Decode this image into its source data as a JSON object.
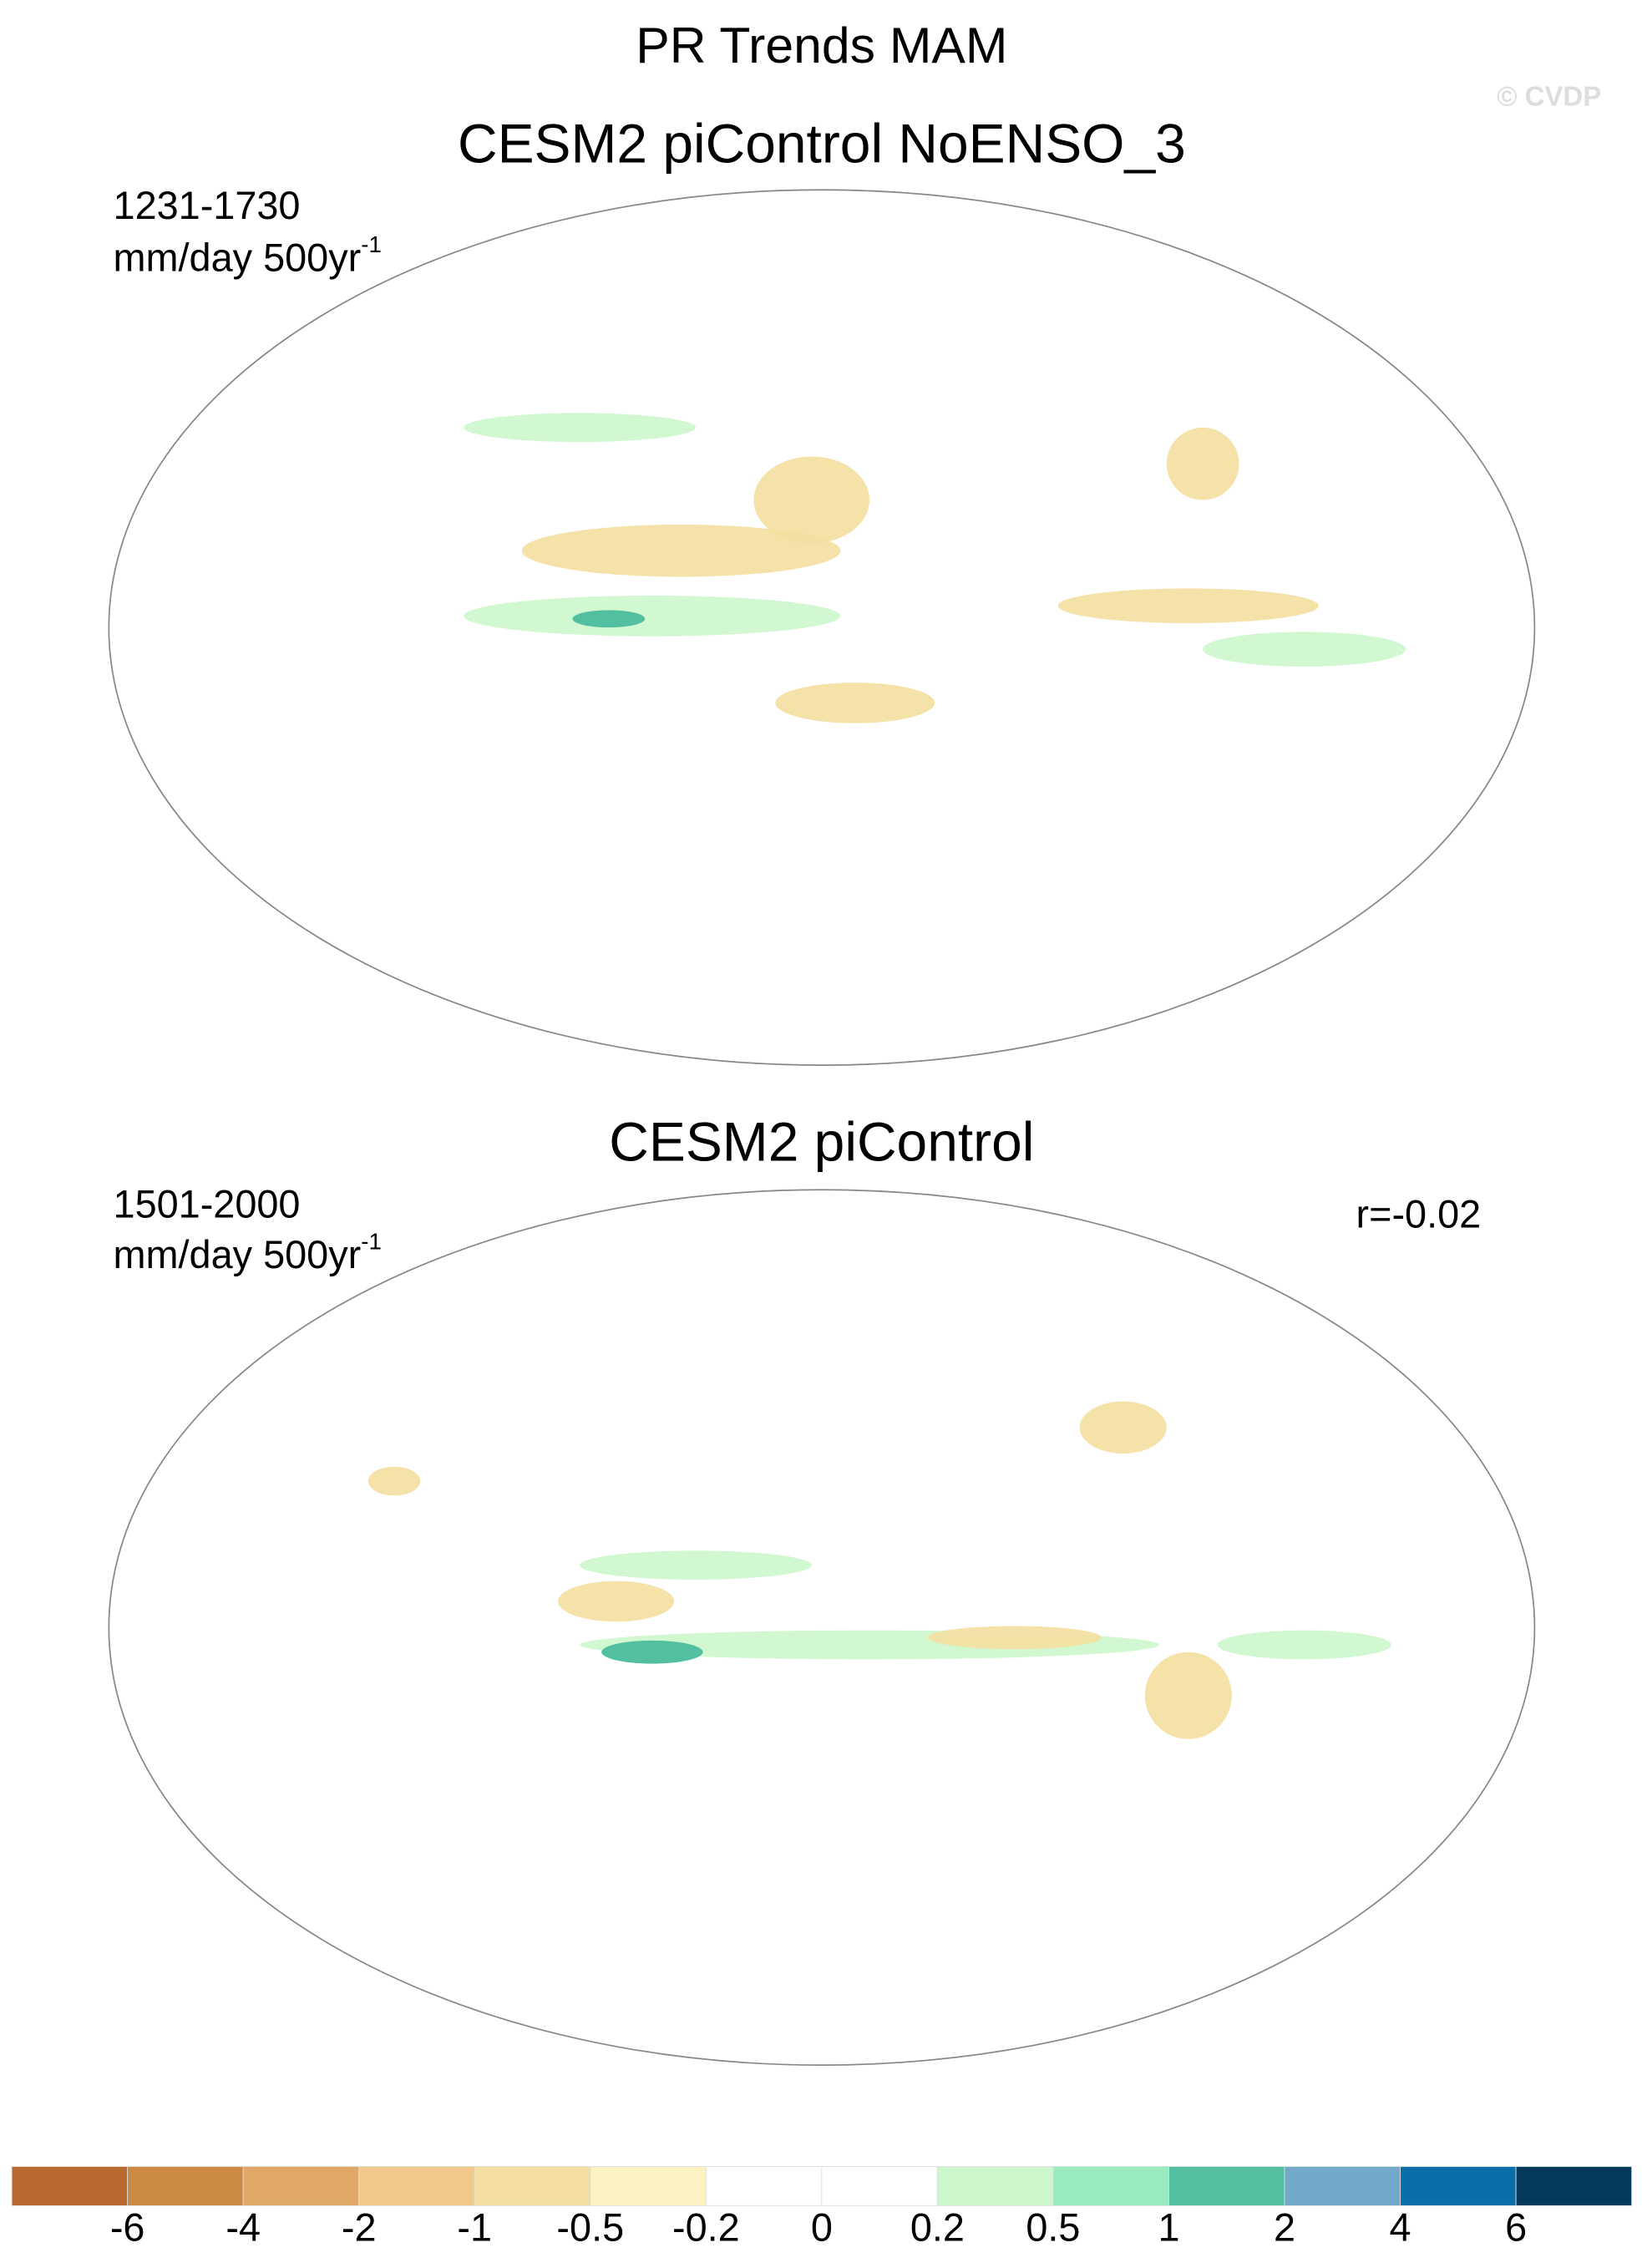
{
  "title": "PR Trends MAM",
  "watermark": "© CVDP",
  "panels": [
    {
      "title": "CESM2 piControl NoENSO_3",
      "period": "1231-1730",
      "units": "mm/day 500yr",
      "units_exponent": "-1"
    },
    {
      "title": "CESM2 piControl",
      "period": "1501-2000",
      "units": "mm/day 500yr",
      "units_exponent": "-1",
      "correlation": "r=-0.02"
    }
  ],
  "colorbar": {
    "levels": [
      -6,
      -4,
      -2,
      -1,
      -0.5,
      -0.2,
      0,
      0.2,
      0.5,
      1,
      2,
      4,
      6
    ],
    "colors": [
      "#b86a2e",
      "#cd8a45",
      "#e0a866",
      "#f2c98a",
      "#f4dfa0",
      "#fdf3c2",
      "#ffffff",
      "#ffffff",
      "#ccf7cc",
      "#98ebbf",
      "#52c0a0",
      "#72a9c9",
      "#0a6fa9",
      "#053a5c"
    ]
  }
}
